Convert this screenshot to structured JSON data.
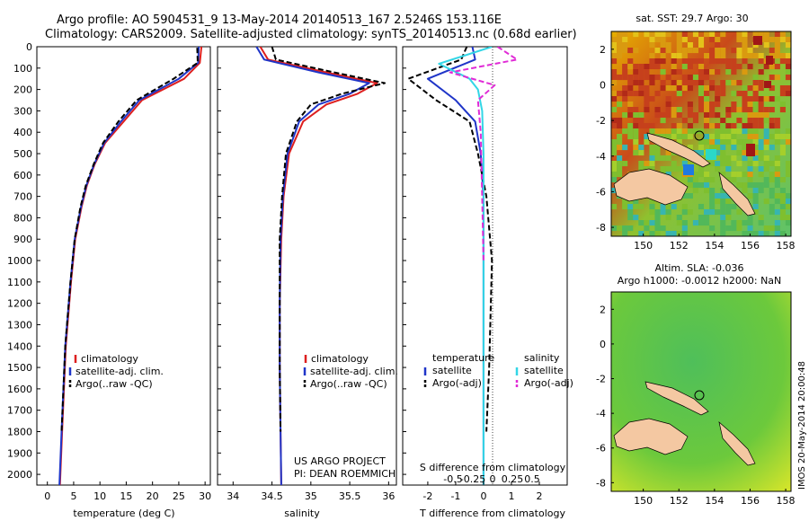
{
  "header": {
    "title_line1": "Argo profile: AO 5904531_9 13-May-2014 20140513_167 2.5246S 153.116E",
    "title_line2": "Climatology: CARS2009. Satellite-adjusted climatology: synTS_20140513.nc (0.68d earlier)"
  },
  "footer": {
    "project_line1": "US ARGO PROJECT",
    "project_line2": "PI: DEAN ROEMMICH"
  },
  "colors": {
    "climatology": "#dd1f1f",
    "satellite": "#1f35c8",
    "argo": "#000000",
    "sat_salinity": "#33d6e6",
    "argo_salinity": "#e02bd6"
  },
  "chart_data": [
    {
      "type": "line",
      "xlabel": "temperature (deg C)",
      "y_ticks": [
        "0",
        "100",
        "200",
        "300",
        "400",
        "500",
        "600",
        "700",
        "800",
        "900",
        "1000",
        "1100",
        "1200",
        "1300",
        "1400",
        "1500",
        "1600",
        "1700",
        "1800",
        "1900",
        "2000"
      ],
      "x_ticks": [
        "0",
        "5",
        "10",
        "15",
        "20",
        "25",
        "30"
      ],
      "xlim": [
        -2,
        31
      ],
      "ylim": [
        2050,
        0
      ],
      "legend": [
        "climatology",
        "satellite-adj. clim.",
        "Argo(..raw -QC)"
      ],
      "series": [
        {
          "name": "climatology",
          "x": [
            29.3,
            29.0,
            26.0,
            18.0,
            14.5,
            11.0,
            9.0,
            7.5,
            6.5,
            5.3,
            4.5,
            3.5,
            2.8,
            2.4
          ],
          "y": [
            0,
            75,
            150,
            250,
            350,
            450,
            550,
            650,
            750,
            900,
            1100,
            1400,
            1800,
            2050
          ]
        },
        {
          "name": "satellite-adj. clim.",
          "x": [
            28.8,
            28.7,
            25.0,
            17.5,
            14.0,
            10.8,
            8.9,
            7.4,
            6.4,
            5.2,
            4.4,
            3.4,
            2.7,
            2.3
          ],
          "y": [
            0,
            75,
            150,
            250,
            350,
            450,
            550,
            650,
            750,
            900,
            1100,
            1400,
            1800,
            2050
          ]
        },
        {
          "name": "Argo(..raw -QC)",
          "x": [
            28.5,
            28.6,
            24.0,
            17.0,
            13.5,
            10.6,
            8.8,
            7.3,
            6.3,
            5.2,
            4.4,
            3.4,
            2.7
          ],
          "y": [
            5,
            75,
            150,
            250,
            350,
            450,
            550,
            650,
            750,
            900,
            1100,
            1400,
            1800
          ]
        }
      ]
    },
    {
      "type": "line",
      "xlabel": "salinity",
      "x_ticks": [
        "34",
        "34.5",
        "35",
        "35.5",
        "36"
      ],
      "xlim": [
        33.8,
        36.1
      ],
      "ylim": [
        2050,
        0
      ],
      "legend": [
        "climatology",
        "satellite-adj. clim.",
        "Argo(..raw -QC)"
      ],
      "series": [
        {
          "name": "climatology",
          "x": [
            34.35,
            34.45,
            35.2,
            35.85,
            35.6,
            35.2,
            34.9,
            34.72,
            34.65,
            34.62,
            34.6,
            34.6,
            34.61,
            34.62
          ],
          "y": [
            0,
            60,
            120,
            170,
            220,
            270,
            350,
            500,
            700,
            900,
            1200,
            1500,
            1800,
            2050
          ]
        },
        {
          "name": "satellite-adj. clim.",
          "x": [
            34.3,
            34.4,
            35.1,
            35.75,
            35.5,
            35.1,
            34.85,
            34.7,
            34.64,
            34.61,
            34.6,
            34.6,
            34.61,
            34.62
          ],
          "y": [
            0,
            60,
            120,
            170,
            220,
            270,
            350,
            500,
            700,
            900,
            1200,
            1500,
            1800,
            2050
          ]
        },
        {
          "name": "Argo(..raw -QC)",
          "x": [
            34.5,
            34.55,
            35.3,
            35.95,
            35.4,
            35.0,
            34.82,
            34.68,
            34.63,
            34.6,
            34.6,
            34.6,
            34.61
          ],
          "y": [
            0,
            60,
            120,
            170,
            220,
            270,
            350,
            500,
            700,
            900,
            1200,
            1500,
            1800
          ]
        }
      ]
    },
    {
      "type": "line",
      "xlabel": "T difference from climatology",
      "xlabel_top": "S difference from climatology",
      "x_ticks": [
        "-2",
        "-1",
        "0",
        "1",
        "2"
      ],
      "x_ticks_top": [
        "-0.5",
        "-0.25",
        "0",
        "0.25",
        "0.5"
      ],
      "xlim": [
        -2.9,
        3.0
      ],
      "ylim": [
        2050,
        0
      ],
      "legend": [
        "temperature",
        "satellite",
        "Argo(-adj)",
        "salinity",
        "satellite",
        "Argo(-adj)"
      ],
      "series": [
        {
          "name": "satellite",
          "x": [
            -0.4,
            -0.3,
            -2.0,
            -1.0,
            -0.3,
            -0.1,
            0.0,
            0.0,
            0.0,
            0.0
          ],
          "y": [
            0,
            60,
            150,
            250,
            350,
            500,
            700,
            1000,
            1500,
            2050
          ]
        },
        {
          "name": "Argo(-adj)",
          "x": [
            -0.6,
            -0.8,
            -2.7,
            -1.7,
            -0.5,
            -0.2,
            0.1,
            0.3,
            0.2,
            0.1
          ],
          "y": [
            0,
            60,
            150,
            250,
            350,
            500,
            700,
            1000,
            1500,
            1800
          ]
        },
        {
          "name": "satellite",
          "x": [
            0.3,
            -1.6,
            -0.5,
            -0.2,
            -0.05,
            0.0,
            0.0,
            0.0,
            0.0
          ],
          "y": [
            0,
            80,
            150,
            200,
            300,
            500,
            800,
            1200,
            2050
          ]
        },
        {
          "name": "Argo(-adj)",
          "x": [
            0.5,
            1.2,
            -1.2,
            0.4,
            -0.2,
            -0.1,
            -0.05,
            0.0
          ],
          "y": [
            0,
            60,
            120,
            180,
            250,
            400,
            700,
            1000
          ]
        }
      ]
    }
  ],
  "maps": [
    {
      "title": "sat. SST: 29.7 Argo: 30",
      "x_ticks": [
        "150",
        "152",
        "154",
        "156",
        "158"
      ],
      "y_ticks": [
        "2",
        "0",
        "-2",
        "-4",
        "-6",
        "-8"
      ]
    },
    {
      "title_line1": "Altim. SLA: -0.036",
      "title_line2": "Argo h1000: -0.0012 h2000: NaN",
      "x_ticks": [
        "150",
        "152",
        "154",
        "156",
        "158"
      ],
      "y_ticks": [
        "2",
        "0",
        "-2",
        "-4",
        "-6",
        "-8"
      ]
    }
  ],
  "side_stamp": "IMOS 20-May-2014 20:00:48"
}
